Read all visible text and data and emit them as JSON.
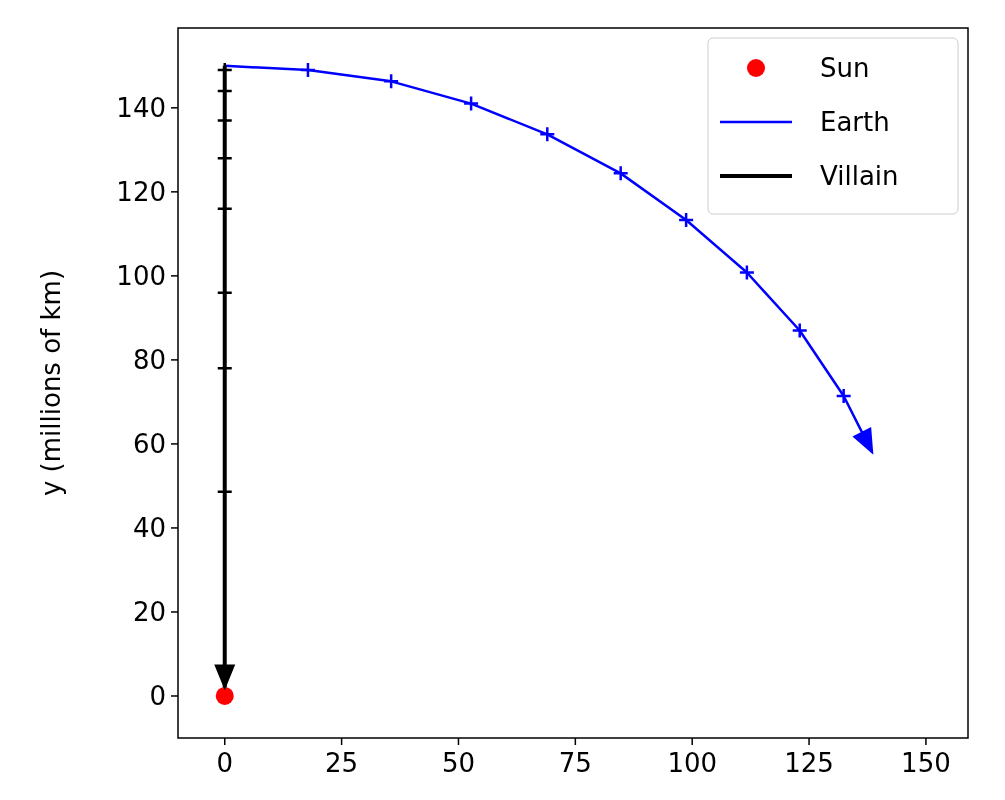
{
  "chart_data": {
    "type": "line",
    "ylabel": "y (millions of km)",
    "xlim": [
      -10,
      159
    ],
    "ylim": [
      -10,
      159
    ],
    "xticks": [
      0,
      25,
      50,
      75,
      100,
      125,
      150
    ],
    "yticks": [
      0,
      20,
      40,
      60,
      80,
      100,
      120,
      140
    ],
    "legend": "top right",
    "grid": false,
    "series": [
      {
        "name": "Sun",
        "type": "scatter",
        "color": "#ff0000",
        "marker": "circle",
        "x": [
          0
        ],
        "values": [
          0
        ]
      },
      {
        "name": "Earth",
        "color": "#0000ff",
        "marker": "cross",
        "x": [
          0,
          17.8,
          35.6,
          52.7,
          69,
          84.7,
          98.7,
          111.7,
          123,
          132.4,
          138.5
        ],
        "values": [
          150,
          149,
          146.3,
          141,
          133.7,
          124.4,
          113.3,
          100.8,
          87,
          71.4,
          58
        ]
      },
      {
        "name": "Villain",
        "color": "#000000",
        "marker": "cross",
        "x": [
          0,
          0,
          0,
          0,
          0,
          0,
          0,
          0,
          0,
          0
        ],
        "values": [
          150,
          149,
          144,
          137,
          128,
          116,
          96,
          78,
          48.6,
          2
        ]
      }
    ]
  }
}
